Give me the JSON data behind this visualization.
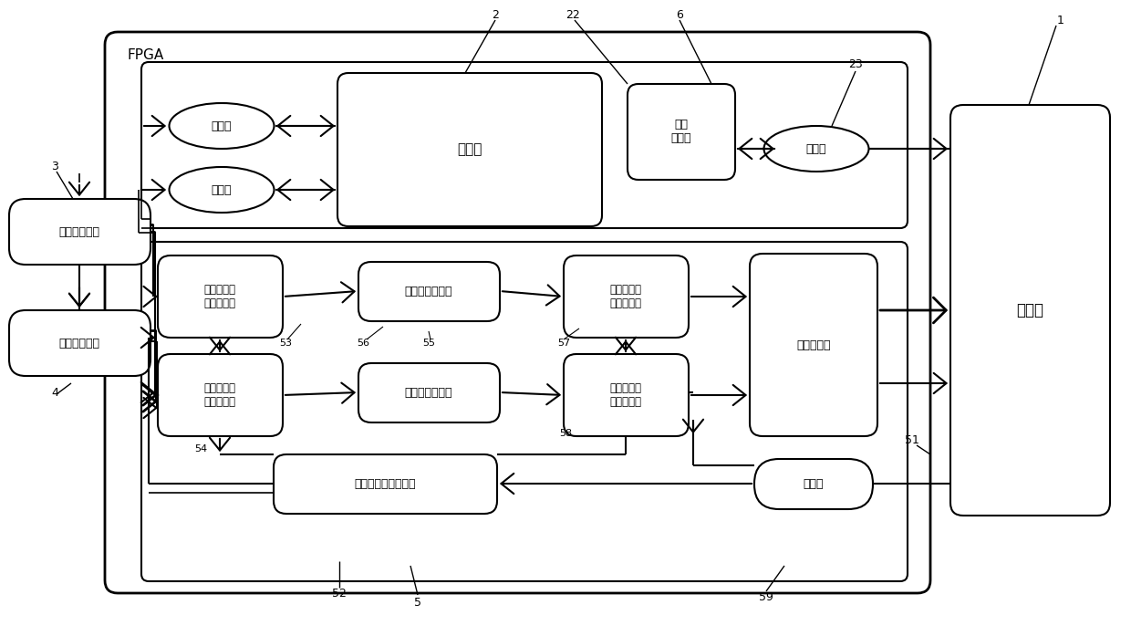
{
  "bg_color": "#ffffff",
  "labels": {
    "left_cam": "左摄像机模组",
    "right_cam": "右摄像机模组",
    "processor": "处理器",
    "agent": "代理器",
    "agent_reg": "代理\n寄存器",
    "tristate1": "三态门",
    "tristate2": "三态门",
    "tristate3": "三态门",
    "buf1_write": "第一行缓冲\n写控制单元",
    "buf2_write": "第二行缓冲\n写控制单元",
    "buf1_unit": "第一行缓冲单元",
    "buf2_unit": "第二行缓冲单元",
    "buf1_read": "第一行缓冲\n读控制单元",
    "buf2_read": "第二行缓冲\n读控制单元",
    "video_sync": "视频帧同步控制模块",
    "video_comp": "视频帧合成",
    "pll": "锁相环",
    "fpga": "FPGA"
  }
}
